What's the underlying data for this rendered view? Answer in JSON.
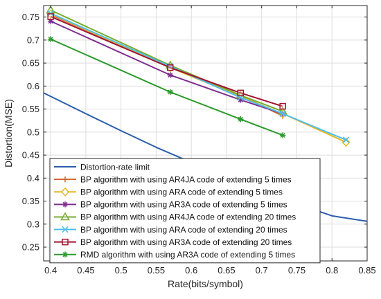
{
  "chart_data": {
    "type": "line",
    "title": "",
    "xlabel": "Rate(bits/symbol)",
    "ylabel": "Distortion(MSE)",
    "xlim": [
      0.39,
      0.85
    ],
    "ylim": [
      0.22,
      0.775
    ],
    "xticks": [
      0.4,
      0.45,
      0.5,
      0.55,
      0.6,
      0.65,
      0.7,
      0.75,
      0.8,
      0.85
    ],
    "xtick_labels": [
      "0.4",
      "0.45",
      "0.5",
      "0.55",
      "0.6",
      "0.65",
      "0.7",
      "0.75",
      "0.8",
      "0.85"
    ],
    "yticks": [
      0.25,
      0.3,
      0.35,
      0.4,
      0.45,
      0.5,
      0.55,
      0.6,
      0.65,
      0.7,
      0.75
    ],
    "ytick_labels": [
      "0.25",
      "0.3",
      "0.35",
      "0.4",
      "0.45",
      "0.5",
      "0.55",
      "0.6",
      "0.65",
      "0.7",
      "0.75"
    ],
    "grid": true,
    "legend_position": "bottom-left",
    "series": [
      {
        "name": "Distortion-rate limit",
        "color": "#2a5caa",
        "marker": "none",
        "x": [
          0.39,
          0.45,
          0.5,
          0.55,
          0.6,
          0.65,
          0.7,
          0.75,
          0.8,
          0.85
        ],
        "y": [
          0.585,
          0.54,
          0.503,
          0.467,
          0.434,
          0.402,
          0.372,
          0.344,
          0.318,
          0.306
        ]
      },
      {
        "name": "BP algorithm with using AR4JA code of extending 5 times",
        "color": "#d9622b",
        "marker": "plus",
        "x": [
          0.4,
          0.57,
          0.67,
          0.73
        ],
        "y": [
          0.755,
          0.642,
          0.58,
          0.535
        ]
      },
      {
        "name": "BP algorithm with using ARA code of extending 5 times",
        "color": "#e8b820",
        "marker": "diamond",
        "x": [
          0.4,
          0.57,
          0.67,
          0.73,
          0.82
        ],
        "y": [
          0.757,
          0.64,
          0.577,
          0.54,
          0.478
        ]
      },
      {
        "name": "BP algorithm with using AR3A code of extending 5 times",
        "color": "#7e2f8e",
        "marker": "asterisk",
        "x": [
          0.4,
          0.57,
          0.67,
          0.73
        ],
        "y": [
          0.741,
          0.624,
          0.57,
          0.54
        ]
      },
      {
        "name": "BP algorithm with using AR4JA code of extending 20 times",
        "color": "#77ac30",
        "marker": "triangle",
        "x": [
          0.4,
          0.57,
          0.67,
          0.73
        ],
        "y": [
          0.765,
          0.645,
          0.58,
          0.545
        ]
      },
      {
        "name": "BP algorithm with using ARA code of extending 20 times",
        "color": "#4dbeee",
        "marker": "cross",
        "x": [
          0.4,
          0.57,
          0.67,
          0.73,
          0.82
        ],
        "y": [
          0.758,
          0.643,
          0.575,
          0.54,
          0.483
        ]
      },
      {
        "name": "BP algorithm with using AR3A code of extending 20 times",
        "color": "#a2142f",
        "marker": "square",
        "x": [
          0.4,
          0.57,
          0.67,
          0.73
        ],
        "y": [
          0.751,
          0.64,
          0.585,
          0.556
        ]
      },
      {
        "name": "RMD algorithm with using AR3A code of extending 5 times",
        "color": "#2c9a2c",
        "marker": "asterisk",
        "x": [
          0.4,
          0.57,
          0.67,
          0.73
        ],
        "y": [
          0.702,
          0.587,
          0.528,
          0.493
        ]
      }
    ]
  }
}
